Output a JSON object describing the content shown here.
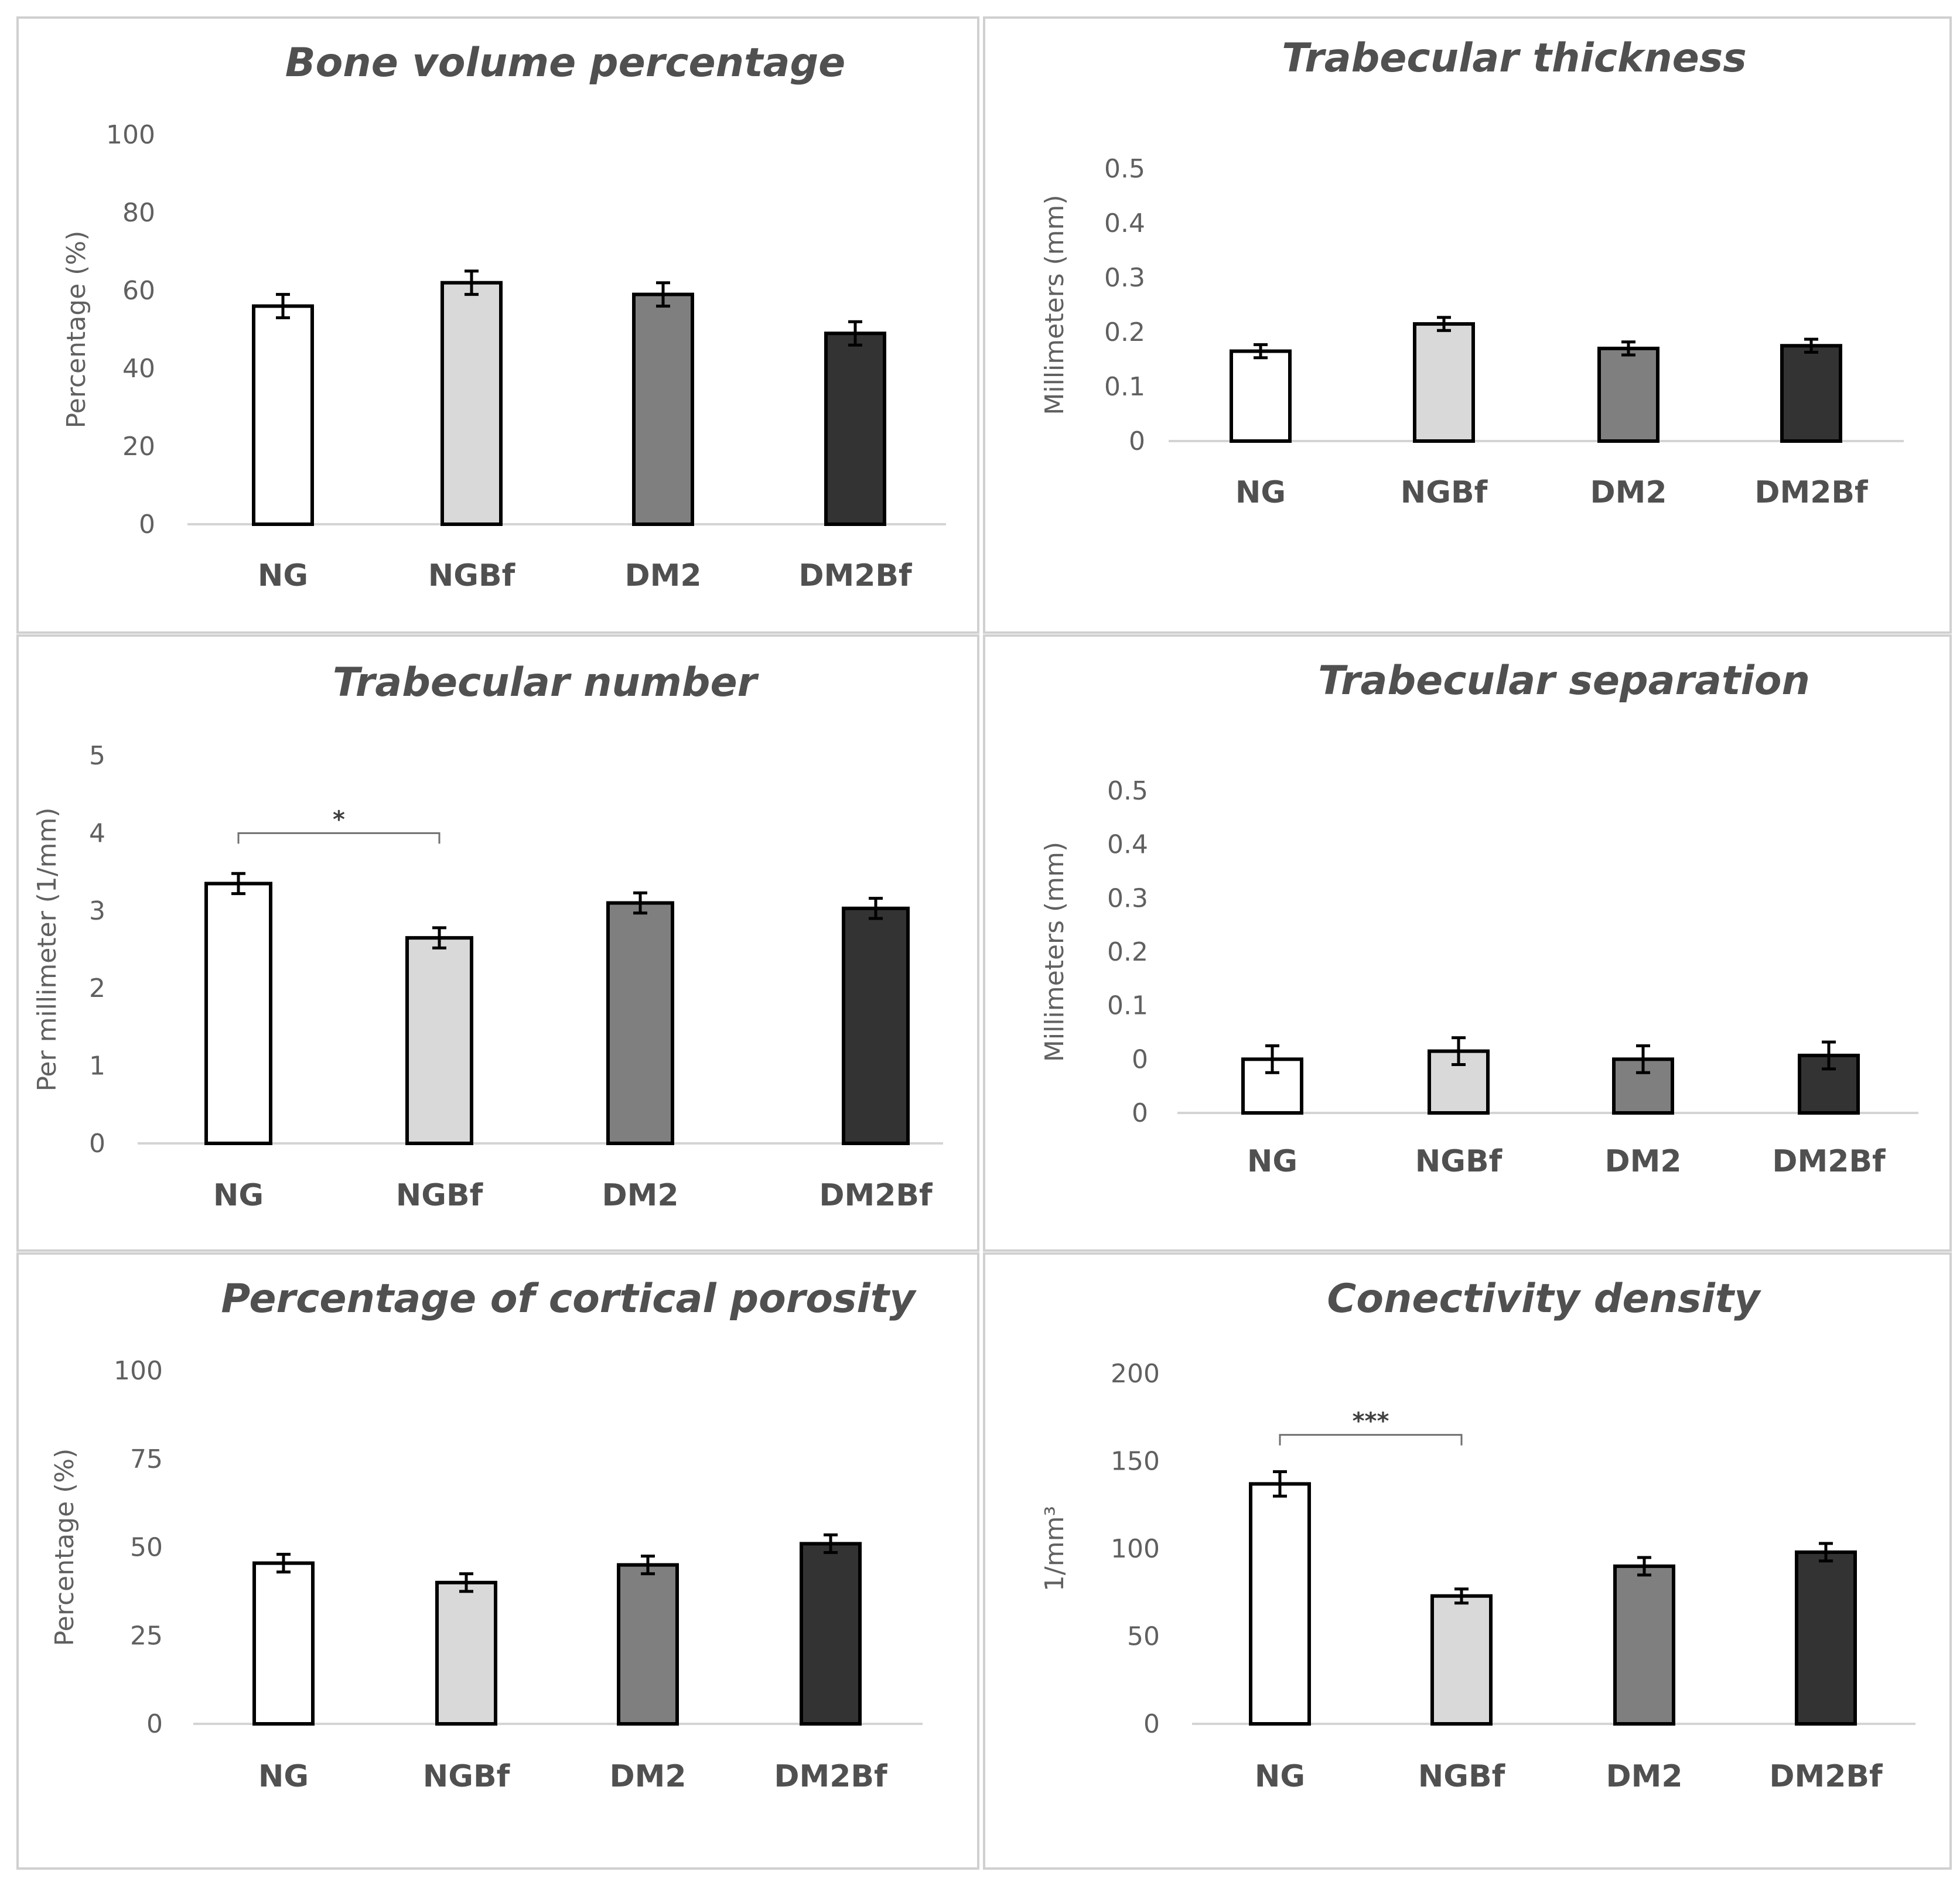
{
  "chart_data": [
    {
      "type": "bar",
      "title": "Bone volume percentage",
      "ylabel": "Percentage (%)",
      "ylim": [
        0,
        100
      ],
      "yticks": [
        "0",
        "20",
        "40",
        "60",
        "80",
        "100"
      ],
      "categories": [
        "NG",
        "NGBf",
        "DM2",
        "DM2Bf"
      ],
      "values": [
        56,
        62,
        59,
        49
      ],
      "errors": [
        3,
        3,
        3,
        3
      ],
      "bar_colors": [
        "#ffffff",
        "#d9d9d9",
        "#7f7f7f",
        "#333333"
      ],
      "significance": []
    },
    {
      "type": "bar",
      "title": "Trabecular thickness",
      "ylabel": "Millimeters (mm)",
      "ylim": [
        0,
        0.5
      ],
      "yticks": [
        "0",
        "0.1",
        "0.2",
        "0.3",
        "0.4",
        "0.5"
      ],
      "categories": [
        "NG",
        "NGBf",
        "DM2",
        "DM2Bf"
      ],
      "values": [
        0.165,
        0.215,
        0.17,
        0.175
      ],
      "errors": [
        0.012,
        0.012,
        0.012,
        0.012
      ],
      "bar_colors": [
        "#ffffff",
        "#d9d9d9",
        "#7f7f7f",
        "#333333"
      ],
      "significance": []
    },
    {
      "type": "bar",
      "title": "Trabecular number",
      "ylabel": "Per millimeter (1/mm)",
      "ylim": [
        0,
        5
      ],
      "yticks": [
        "0",
        "1",
        "2",
        "3",
        "4",
        "5"
      ],
      "categories": [
        "NG",
        "NGBf",
        "DM2",
        "DM2Bf"
      ],
      "values": [
        3.35,
        2.65,
        3.1,
        3.03
      ],
      "errors": [
        0.13,
        0.13,
        0.13,
        0.13
      ],
      "bar_colors": [
        "#ffffff",
        "#d9d9d9",
        "#7f7f7f",
        "#333333"
      ],
      "significance": [
        {
          "from": 0,
          "to": 1,
          "label": "*",
          "y": 4.0
        }
      ]
    },
    {
      "type": "bar",
      "title": "Trabecular separation",
      "ylabel": "Millimeters (mm)",
      "ylim": [
        0,
        0.6
      ],
      "yticks": [
        "0",
        "0",
        "0.1",
        "0.2",
        "0.3",
        "0.4",
        "0.5"
      ],
      "categories": [
        "NG",
        "NGBf",
        "DM2",
        "DM2Bf"
      ],
      "values": [
        0.1,
        0.115,
        0.1,
        0.107
      ],
      "errors": [
        0.025,
        0.025,
        0.025,
        0.025
      ],
      "bar_colors": [
        "#ffffff",
        "#d9d9d9",
        "#7f7f7f",
        "#333333"
      ],
      "significance": []
    },
    {
      "type": "bar",
      "title": "Percentage of cortical porosity",
      "ylabel": "Percentage (%)",
      "ylim": [
        0,
        100
      ],
      "yticks": [
        "0",
        "25",
        "50",
        "75",
        "100"
      ],
      "categories": [
        "NG",
        "NGBf",
        "DM2",
        "DM2Bf"
      ],
      "values": [
        45.5,
        40,
        45,
        51
      ],
      "errors": [
        2.5,
        2.5,
        2.5,
        2.5
      ],
      "bar_colors": [
        "#ffffff",
        "#d9d9d9",
        "#7f7f7f",
        "#333333"
      ],
      "significance": []
    },
    {
      "type": "bar",
      "title": "Conectivity density",
      "ylabel": "1/mm³",
      "ylim": [
        0,
        200
      ],
      "yticks": [
        "0",
        "50",
        "100",
        "150",
        "200"
      ],
      "categories": [
        "NG",
        "NGBf",
        "DM2",
        "DM2Bf"
      ],
      "values": [
        137,
        73,
        90,
        98
      ],
      "errors": [
        7,
        4,
        5,
        5
      ],
      "bar_colors": [
        "#ffffff",
        "#d9d9d9",
        "#7f7f7f",
        "#333333"
      ],
      "significance": [
        {
          "from": 0,
          "to": 1,
          "label": "***",
          "y": 165
        }
      ]
    }
  ]
}
